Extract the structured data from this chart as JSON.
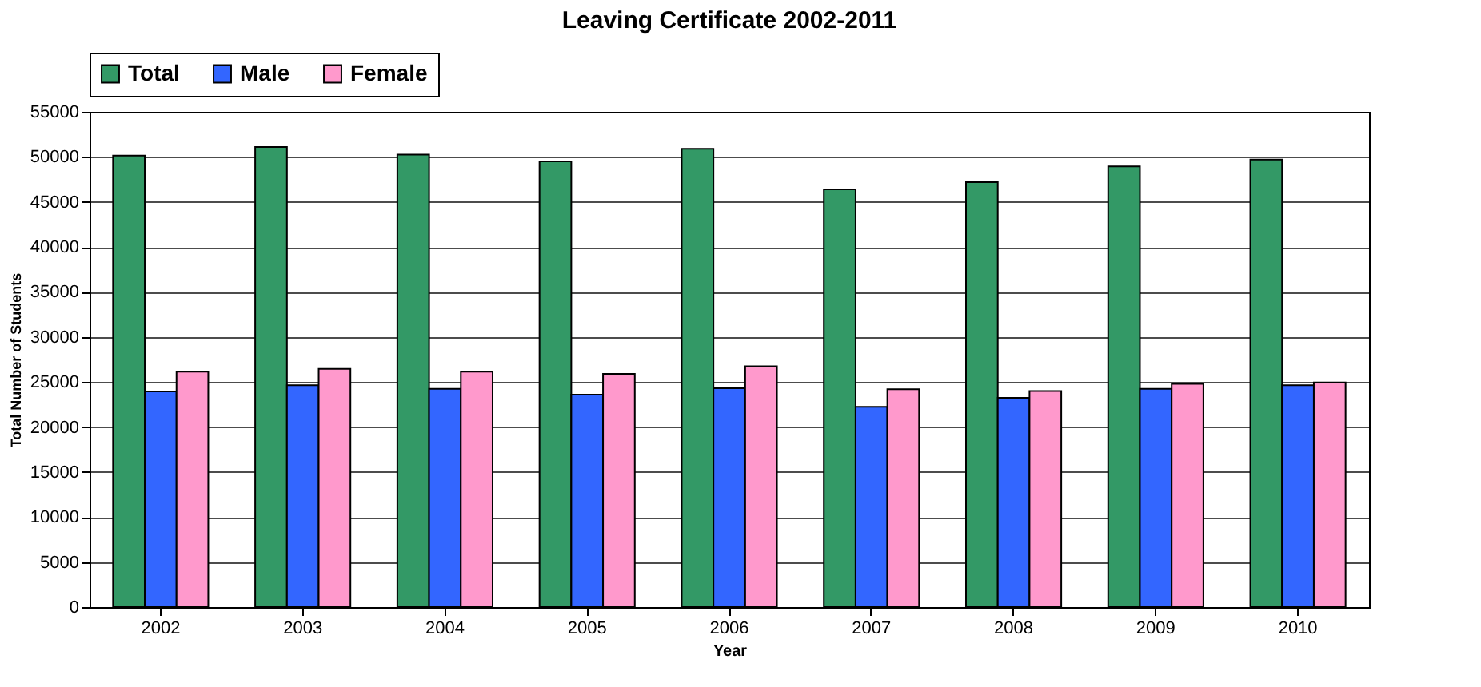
{
  "chart_data": {
    "type": "bar",
    "title": "Leaving Certificate 2002-2011",
    "xlabel": "Year",
    "ylabel": "Total Number of Students",
    "categories": [
      "2002",
      "2003",
      "2004",
      "2005",
      "2006",
      "2007",
      "2008",
      "2009",
      "2010"
    ],
    "series": [
      {
        "name": "Total",
        "color": "#339966",
        "values": [
          50150,
          51100,
          50250,
          49500,
          50900,
          46400,
          47200,
          48950,
          49700
        ]
      },
      {
        "name": "Male",
        "color": "#3366ff",
        "values": [
          23950,
          24650,
          24250,
          23600,
          24300,
          22250,
          23250,
          24250,
          24650
        ]
      },
      {
        "name": "Female",
        "color": "#ff99cc",
        "values": [
          26150,
          26450,
          26150,
          25900,
          26750,
          24200,
          24000,
          24800,
          24950
        ]
      }
    ],
    "ylim": [
      0,
      55000
    ],
    "yticks": [
      0,
      5000,
      10000,
      15000,
      20000,
      25000,
      30000,
      35000,
      40000,
      45000,
      50000,
      55000
    ],
    "grid": "y",
    "legend": "top"
  }
}
